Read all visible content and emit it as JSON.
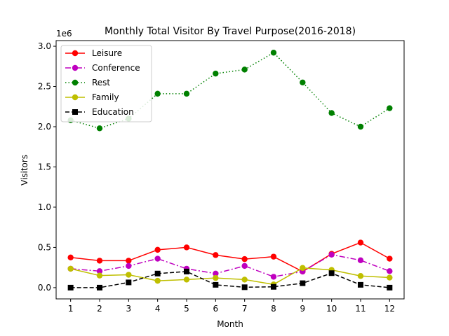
{
  "chart_data": {
    "type": "line",
    "title": "Monthly Total Visitor By Travel Purpose(2016-2018)",
    "xlabel": "Month",
    "ylabel": "Visitors",
    "y_offset_label": "1e6",
    "x": [
      1,
      2,
      3,
      4,
      5,
      6,
      7,
      8,
      9,
      10,
      11,
      12
    ],
    "x_ticks": [
      "1",
      "2",
      "3",
      "4",
      "5",
      "6",
      "7",
      "8",
      "9",
      "10",
      "11",
      "12"
    ],
    "y_ticks": [
      "0.0",
      "0.5",
      "1.0",
      "1.5",
      "2.0",
      "2.5",
      "3.0"
    ],
    "xlim": [
      0.5,
      12.5
    ],
    "ylim": [
      -0.14,
      3.07
    ],
    "grid": false,
    "legend_position": "upper-left",
    "series": [
      {
        "name": "Leisure",
        "color": "#ff0000",
        "linestyle": "solid",
        "marker": "circle",
        "values": [
          0.375,
          0.335,
          0.335,
          0.47,
          0.5,
          0.405,
          0.355,
          0.385,
          0.2,
          0.42,
          0.56,
          0.36
        ]
      },
      {
        "name": "Conference",
        "color": "#bf00bf",
        "linestyle": "dashdot",
        "marker": "circle",
        "values": [
          0.235,
          0.205,
          0.27,
          0.36,
          0.235,
          0.175,
          0.27,
          0.135,
          0.2,
          0.41,
          0.34,
          0.205
        ]
      },
      {
        "name": "Rest",
        "color": "#008000",
        "linestyle": "dotted",
        "marker": "circle",
        "values": [
          2.08,
          1.98,
          2.1,
          2.41,
          2.41,
          2.66,
          2.71,
          2.92,
          2.55,
          2.17,
          2.0,
          2.23
        ]
      },
      {
        "name": "Family",
        "color": "#bfbf00",
        "linestyle": "solid",
        "marker": "circle",
        "values": [
          0.235,
          0.15,
          0.16,
          0.085,
          0.1,
          0.12,
          0.1,
          0.04,
          0.245,
          0.22,
          0.145,
          0.125
        ]
      },
      {
        "name": "Education",
        "color": "#000000",
        "linestyle": "dashed",
        "marker": "square",
        "values": [
          0.0,
          0.0,
          0.065,
          0.175,
          0.2,
          0.035,
          0.005,
          0.01,
          0.055,
          0.18,
          0.035,
          0.0
        ]
      }
    ]
  }
}
